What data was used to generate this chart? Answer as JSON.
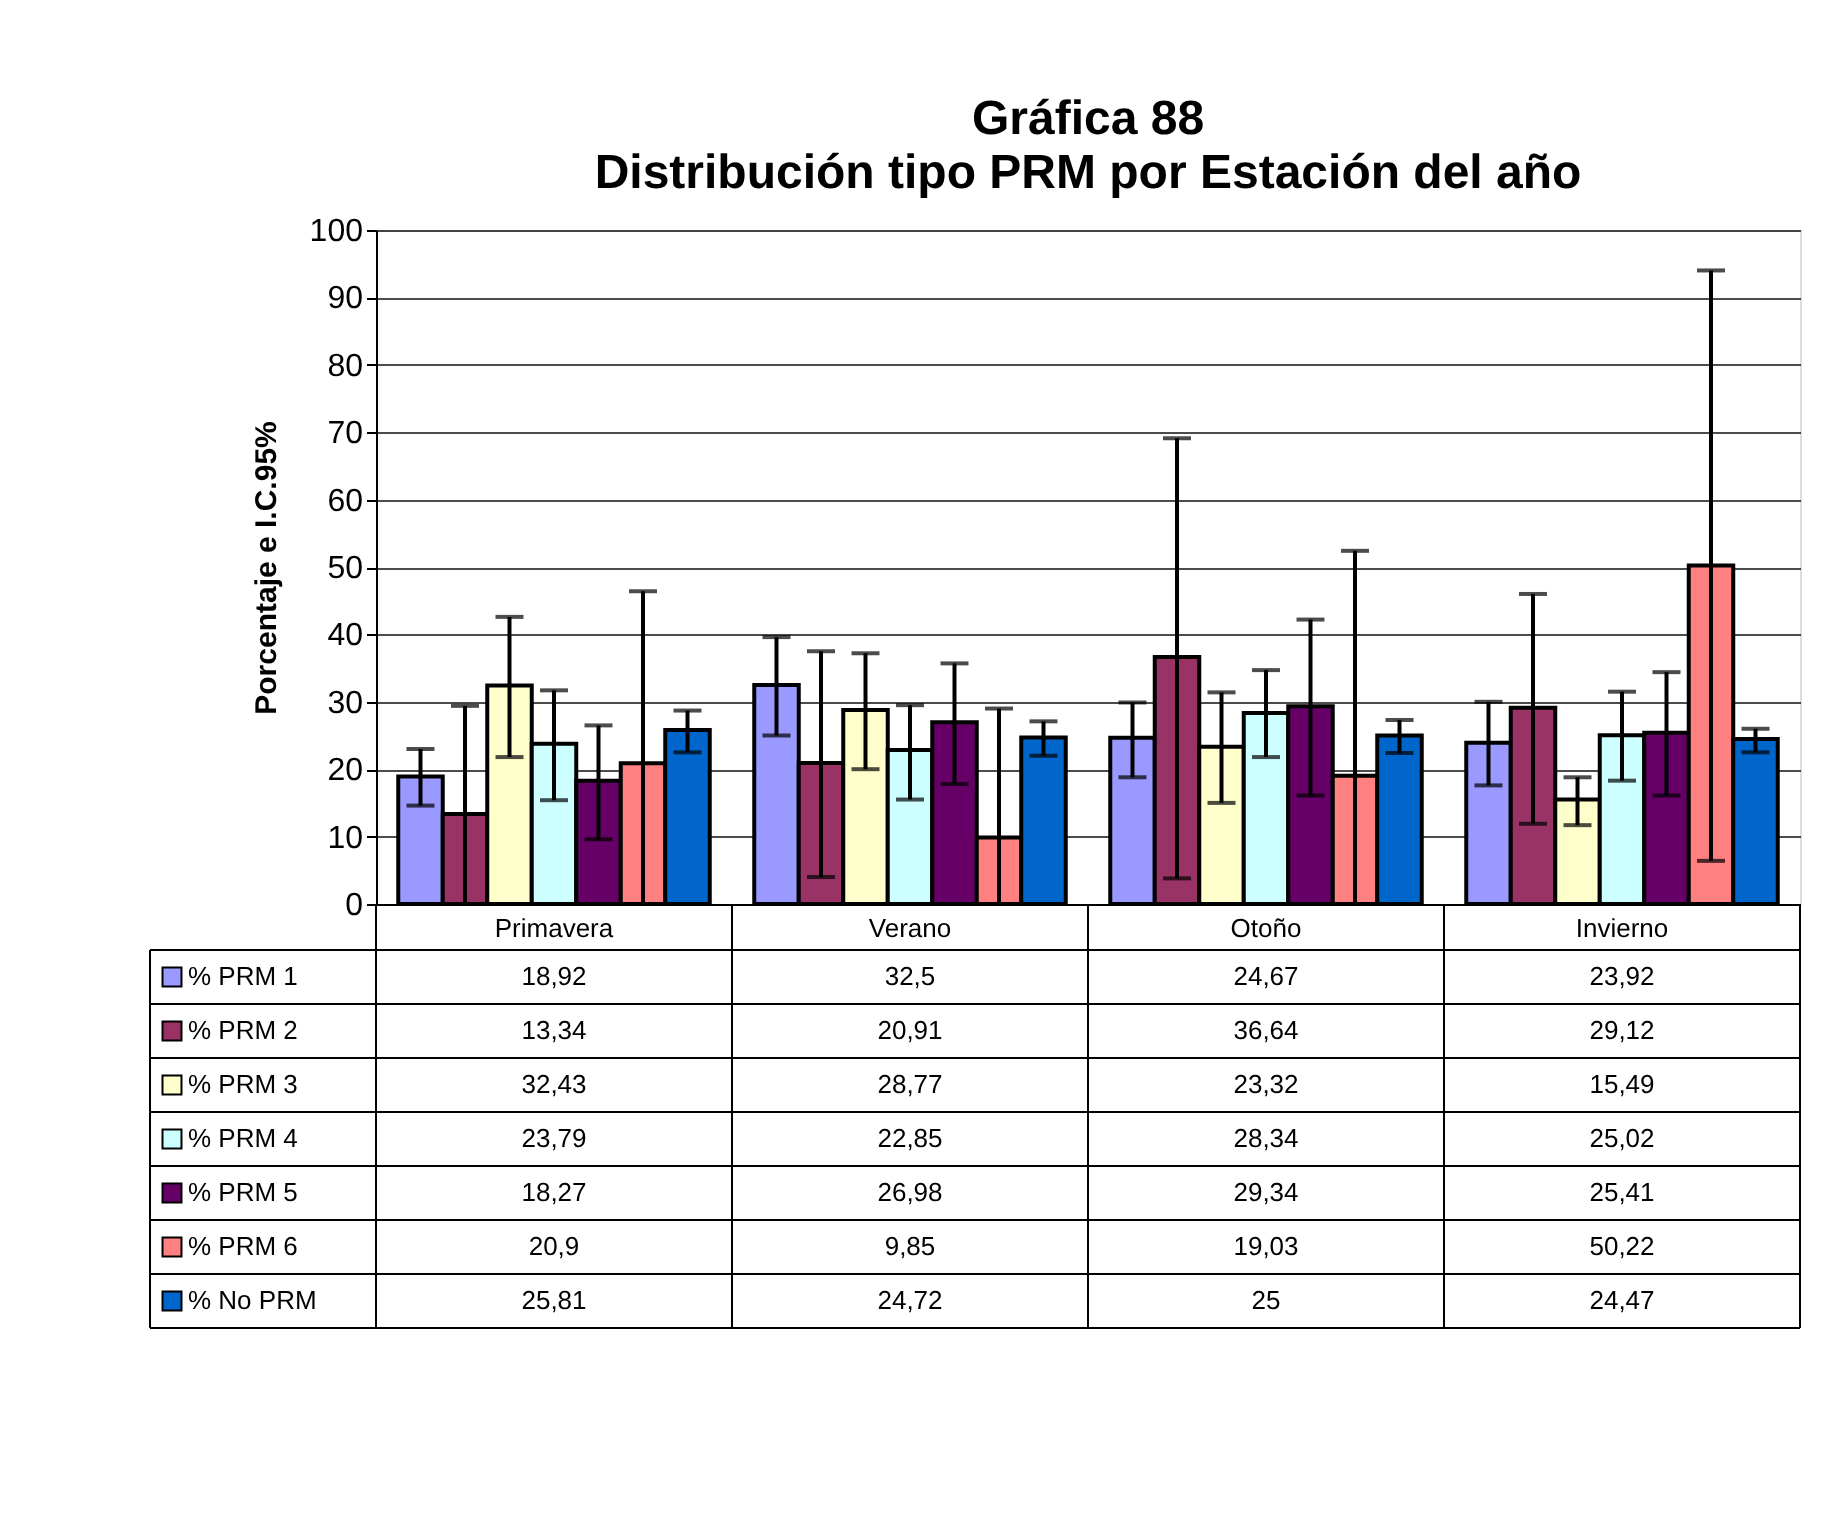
{
  "chart_data": {
    "type": "bar",
    "title": "Gráfica 88",
    "subtitle": "Distribución tipo PRM por Estación del año",
    "ylabel": "Porcentaje e I.C.95%",
    "categories": [
      "Primavera",
      "Verano",
      "Otoño",
      "Invierno"
    ],
    "ylim": [
      0,
      100
    ],
    "yticks": [
      0,
      10,
      20,
      30,
      40,
      50,
      60,
      70,
      80,
      90,
      100
    ],
    "grid": "y",
    "legend": "bottom left",
    "series": [
      {
        "name": "% PRM 1",
        "color": "#9999ff",
        "values": [
          18.92,
          32.5,
          24.67,
          23.92
        ],
        "value_labels": [
          "18,92",
          "32,5",
          "24,67",
          "23,92"
        ],
        "errors": [
          [
            14.6,
            23.0
          ],
          [
            25.0,
            39.6
          ],
          [
            18.8,
            29.9
          ],
          [
            17.6,
            30.0
          ]
        ]
      },
      {
        "name": "% PRM 2",
        "color": "#993366",
        "values": [
          13.34,
          20.91,
          36.64,
          29.12
        ],
        "value_labels": [
          "13,34",
          "20,91",
          "36,64",
          "29,12"
        ],
        "errors": [
          [
            0,
            29.4
          ],
          [
            4.0,
            37.5
          ],
          [
            3.8,
            69.1
          ],
          [
            11.9,
            46.0
          ]
        ]
      },
      {
        "name": "% PRM 3",
        "color": "#ffffcc",
        "values": [
          32.43,
          28.77,
          23.32,
          15.49
        ],
        "value_labels": [
          "32,43",
          "28,77",
          "23,32",
          "15,49"
        ],
        "errors": [
          [
            21.8,
            42.6
          ],
          [
            20.0,
            37.2
          ],
          [
            15.0,
            31.4
          ],
          [
            11.7,
            18.8
          ]
        ]
      },
      {
        "name": "% PRM 4",
        "color": "#ccffff",
        "values": [
          23.79,
          22.85,
          28.34,
          25.02
        ],
        "value_labels": [
          "23,79",
          "22,85",
          "28,34",
          "25,02"
        ],
        "errors": [
          [
            15.4,
            31.7
          ],
          [
            15.5,
            29.5
          ],
          [
            21.8,
            34.7
          ],
          [
            18.3,
            31.5
          ]
        ]
      },
      {
        "name": "% PRM 5",
        "color": "#660066",
        "values": [
          18.27,
          26.98,
          29.34,
          25.41
        ],
        "value_labels": [
          "18,27",
          "26,98",
          "29,34",
          "25,41"
        ],
        "errors": [
          [
            9.6,
            26.5
          ],
          [
            17.8,
            35.7
          ],
          [
            16.1,
            42.2
          ],
          [
            16.1,
            34.4
          ]
        ]
      },
      {
        "name": "% PRM 6",
        "color": "#ff8080",
        "values": [
          20.9,
          9.85,
          19.03,
          50.22
        ],
        "value_labels": [
          "20,9",
          "9,85",
          "19,03",
          "50,22"
        ],
        "errors": [
          [
            0,
            46.4
          ],
          [
            0,
            29.0
          ],
          [
            0,
            52.4
          ],
          [
            6.4,
            94.0
          ]
        ]
      },
      {
        "name": "% No PRM",
        "color": "#0066cc",
        "values": [
          25.81,
          24.72,
          25,
          24.47
        ],
        "value_labels": [
          "25,81",
          "24,72",
          "25",
          "24,47"
        ],
        "errors": [
          [
            22.5,
            28.7
          ],
          [
            22.0,
            27.1
          ],
          [
            22.4,
            27.3
          ],
          [
            22.5,
            26.0
          ]
        ]
      }
    ]
  }
}
